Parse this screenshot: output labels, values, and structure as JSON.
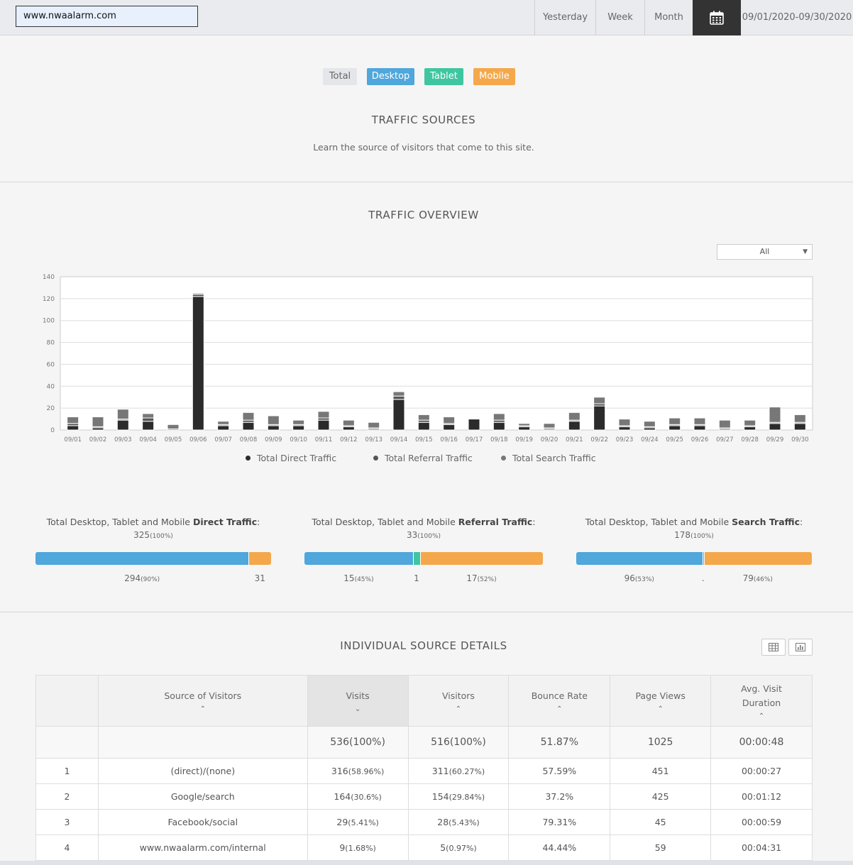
{
  "header": {
    "site": "www.nwaalarm.com",
    "ranges": [
      "Yesterday",
      "Week",
      "Month"
    ],
    "date_range": "09/01/2020-09/30/2020"
  },
  "devices": [
    {
      "label": "Total",
      "bg": "#e4e6e9",
      "fg": "#666666"
    },
    {
      "label": "Desktop",
      "bg": "#4fa7db",
      "fg": "#ffffff"
    },
    {
      "label": "Tablet",
      "bg": "#3fc6a0",
      "fg": "#ffffff"
    },
    {
      "label": "Mobile",
      "bg": "#f4a84b",
      "fg": "#ffffff"
    }
  ],
  "traffic_sources": {
    "title": "TRAFFIC SOURCES",
    "subtitle": "Learn the source of visitors that come to this site."
  },
  "overview": {
    "title": "TRAFFIC OVERVIEW",
    "filter": "All"
  },
  "chart_data": {
    "type": "bar",
    "stacked": true,
    "categories": [
      "09/01",
      "09/02",
      "09/03",
      "09/04",
      "09/05",
      "09/06",
      "09/07",
      "09/08",
      "09/09",
      "09/10",
      "09/11",
      "09/12",
      "09/13",
      "09/14",
      "09/15",
      "09/16",
      "09/17",
      "09/18",
      "09/19",
      "09/20",
      "09/21",
      "09/22",
      "09/23",
      "09/24",
      "09/25",
      "09/26",
      "09/27",
      "09/28",
      "09/29",
      "09/30"
    ],
    "series": [
      {
        "name": "Total Direct Traffic",
        "color": "#2b2b2b",
        "values": [
          4,
          2,
          9,
          8,
          0,
          122,
          4,
          7,
          4,
          4,
          9,
          3,
          1,
          28,
          7,
          5,
          10,
          7,
          3,
          1,
          8,
          22,
          3,
          2,
          4,
          4,
          1,
          3,
          6,
          6
        ]
      },
      {
        "name": "Total Referral Traffic",
        "color": "#555555",
        "values": [
          2,
          1,
          1,
          3,
          1,
          2,
          1,
          2,
          1,
          1,
          2,
          1,
          1,
          3,
          2,
          1,
          0,
          2,
          1,
          1,
          1,
          2,
          1,
          1,
          1,
          1,
          1,
          1,
          1,
          1
        ]
      },
      {
        "name": "Total Search Traffic",
        "color": "#777777",
        "values": [
          6,
          9,
          9,
          4,
          4,
          1,
          3,
          7,
          8,
          4,
          6,
          5,
          5,
          4,
          5,
          6,
          0,
          6,
          2,
          4,
          7,
          6,
          6,
          5,
          6,
          6,
          7,
          5,
          14,
          7
        ]
      }
    ],
    "ylim": [
      0,
      140
    ],
    "yticks": [
      0,
      20,
      40,
      60,
      80,
      100,
      120,
      140
    ],
    "grid": true,
    "legend": "bottom"
  },
  "summaries": [
    {
      "title_prefix": "Total Desktop, Tablet and Mobile ",
      "title_bold": "Direct Traffic",
      "title_suffix": ":",
      "total": "325",
      "total_pct": "(100%)",
      "segments": [
        {
          "device": "Desktop",
          "fraction": 0.905,
          "color": "#4fa7db",
          "value": "294",
          "pct": "(90%)"
        },
        {
          "device": "Tablet",
          "fraction": 0.0,
          "color": "#3fc6a0",
          "value": "",
          "pct": ""
        },
        {
          "device": "Mobile",
          "fraction": 0.095,
          "color": "#f4a84b",
          "value": "31",
          "pct": ""
        }
      ]
    },
    {
      "title_prefix": "Total Desktop, Tablet and Mobile ",
      "title_bold": "Referral Traffic",
      "title_suffix": ":",
      "total": "33",
      "total_pct": "(100%)",
      "segments": [
        {
          "device": "Desktop",
          "fraction": 0.455,
          "color": "#4fa7db",
          "value": "15",
          "pct": "(45%)"
        },
        {
          "device": "Tablet",
          "fraction": 0.03,
          "color": "#3fc6a0",
          "value": "1",
          "pct": ""
        },
        {
          "device": "Mobile",
          "fraction": 0.515,
          "color": "#f4a84b",
          "value": "17",
          "pct": "(52%)"
        }
      ]
    },
    {
      "title_prefix": "Total Desktop, Tablet and Mobile ",
      "title_bold": "Search Traffic",
      "title_suffix": ":",
      "total": "178",
      "total_pct": "(100%)",
      "segments": [
        {
          "device": "Desktop",
          "fraction": 0.535,
          "color": "#4fa7db",
          "value": "96",
          "pct": "(53%)"
        },
        {
          "device": "Tablet",
          "fraction": 0.006,
          "color": "#3fc6a0",
          "value": ".",
          "pct": ""
        },
        {
          "device": "Mobile",
          "fraction": 0.459,
          "color": "#f4a84b",
          "value": "79",
          "pct": "(46%)"
        }
      ]
    }
  ],
  "details": {
    "title": "INDIVIDUAL SOURCE DETAILS",
    "columns": [
      "",
      "Source of Visitors",
      "Visits",
      "Visitors",
      "Bounce Rate",
      "Page Views",
      "Avg. Visit Duration"
    ],
    "sort_icons": [
      "",
      "^",
      "v",
      "^",
      "^",
      "^",
      "^"
    ],
    "totals": {
      "visits": "536",
      "visits_pct": "(100%)",
      "visitors": "516",
      "visitors_pct": "(100%)",
      "bounce": "51.87%",
      "pageviews": "1025",
      "duration": "00:00:48"
    },
    "rows": [
      {
        "rank": "1",
        "source": "(direct)/(none)",
        "visits": "316",
        "visits_pct": "(58.96%)",
        "visitors": "311",
        "visitors_pct": "(60.27%)",
        "bounce": "57.59%",
        "pageviews": "451",
        "duration": "00:00:27"
      },
      {
        "rank": "2",
        "source": "Google/search",
        "visits": "164",
        "visits_pct": "(30.6%)",
        "visitors": "154",
        "visitors_pct": "(29.84%)",
        "bounce": "37.2%",
        "pageviews": "425",
        "duration": "00:01:12"
      },
      {
        "rank": "3",
        "source": "Facebook/social",
        "visits": "29",
        "visits_pct": "(5.41%)",
        "visitors": "28",
        "visitors_pct": "(5.43%)",
        "bounce": "79.31%",
        "pageviews": "45",
        "duration": "00:00:59"
      },
      {
        "rank": "4",
        "source": "www.nwaalarm.com/internal",
        "visits": "9",
        "visits_pct": "(1.68%)",
        "visitors": "5",
        "visitors_pct": "(0.97%)",
        "bounce": "44.44%",
        "pageviews": "59",
        "duration": "00:04:31"
      }
    ]
  }
}
